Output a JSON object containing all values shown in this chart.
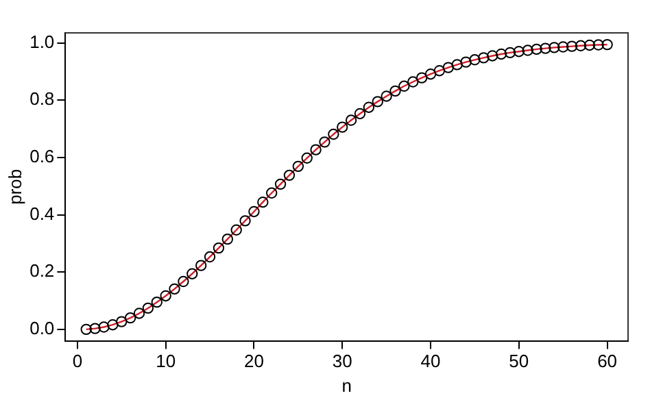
{
  "chart_data": {
    "type": "scatter",
    "xlabel": "n",
    "ylabel": "prob",
    "x": [
      1,
      2,
      3,
      4,
      5,
      6,
      7,
      8,
      9,
      10,
      11,
      12,
      13,
      14,
      15,
      16,
      17,
      18,
      19,
      20,
      21,
      22,
      23,
      24,
      25,
      26,
      27,
      28,
      29,
      30,
      31,
      32,
      33,
      34,
      35,
      36,
      37,
      38,
      39,
      40,
      41,
      42,
      43,
      44,
      45,
      46,
      47,
      48,
      49,
      50,
      51,
      52,
      53,
      54,
      55,
      56,
      57,
      58,
      59,
      60
    ],
    "series": [
      {
        "marker": "circle",
        "color": "#000000",
        "values": [
          0,
          0.003,
          0.008,
          0.016,
          0.027,
          0.04,
          0.056,
          0.074,
          0.095,
          0.117,
          0.141,
          0.167,
          0.194,
          0.223,
          0.253,
          0.284,
          0.315,
          0.347,
          0.379,
          0.411,
          0.444,
          0.476,
          0.507,
          0.538,
          0.569,
          0.598,
          0.627,
          0.654,
          0.681,
          0.706,
          0.73,
          0.753,
          0.775,
          0.795,
          0.814,
          0.832,
          0.849,
          0.864,
          0.878,
          0.891,
          0.903,
          0.914,
          0.924,
          0.933,
          0.941,
          0.948,
          0.955,
          0.961,
          0.966,
          0.97,
          0.974,
          0.978,
          0.981,
          0.984,
          0.986,
          0.988,
          0.99,
          0.992,
          0.993,
          0.994
        ]
      },
      {
        "type": "line",
        "marker": "none",
        "color": "#d0202a",
        "values": [
          0,
          0.003,
          0.008,
          0.016,
          0.027,
          0.04,
          0.056,
          0.074,
          0.095,
          0.117,
          0.141,
          0.167,
          0.194,
          0.223,
          0.253,
          0.284,
          0.315,
          0.347,
          0.379,
          0.411,
          0.444,
          0.476,
          0.507,
          0.538,
          0.569,
          0.598,
          0.627,
          0.654,
          0.681,
          0.706,
          0.73,
          0.753,
          0.775,
          0.795,
          0.814,
          0.832,
          0.849,
          0.864,
          0.878,
          0.891,
          0.903,
          0.914,
          0.924,
          0.933,
          0.941,
          0.948,
          0.955,
          0.961,
          0.966,
          0.97,
          0.974,
          0.978,
          0.981,
          0.984,
          0.986,
          0.988,
          0.99,
          0.992,
          0.993,
          0.994
        ]
      }
    ],
    "line_style": "solid",
    "xlim": [
      -1.36,
      62.36
    ],
    "xticks": [
      0,
      10,
      20,
      30,
      40,
      50,
      60
    ],
    "ylim": [
      -0.04,
      1.035
    ],
    "yticks": [
      {
        "value": 0,
        "label": "0.0"
      },
      {
        "value": 0.2,
        "label": "0.2"
      },
      {
        "value": 0.4,
        "label": "0.4"
      },
      {
        "value": 0.6,
        "label": "0.6"
      },
      {
        "value": 0.8,
        "label": "0.8"
      },
      {
        "value": 1,
        "label": "1.0"
      }
    ],
    "grid": false,
    "legend": false
  }
}
